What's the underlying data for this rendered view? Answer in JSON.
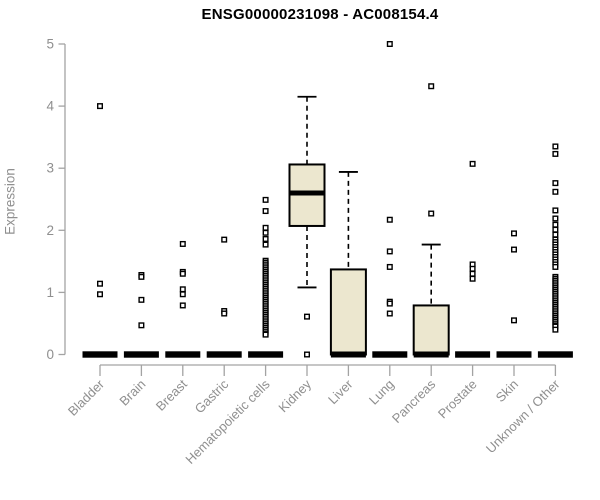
{
  "chart_data": {
    "type": "boxplot",
    "title": "ENSG00000231098 - AC008154.4",
    "ylabel": "Expression",
    "xlabel": "",
    "ylim": [
      0,
      5
    ],
    "yticks": [
      0,
      1,
      2,
      3,
      4,
      5
    ],
    "grid": false,
    "legend": false,
    "box_fill_color": "#ece7cf",
    "box_stroke_color": "#000000",
    "axis_color": "#a3a3a3",
    "tick_label_color": "#8f8f8f",
    "outlier_marker": "open-square",
    "categories": [
      "Bladder",
      "Brain",
      "Breast",
      "Gastric",
      "Hematopoietic cells",
      "Kidney",
      "Liver",
      "Lung",
      "Pancreas",
      "Prostate",
      "Skin",
      "Unknown / Other"
    ],
    "series": [
      {
        "name": "Bladder",
        "q1": 0,
        "median": 0,
        "q3": 0,
        "whisker_low": 0,
        "whisker_high": 0,
        "outliers": [
          4.0,
          1.14,
          0.97
        ]
      },
      {
        "name": "Brain",
        "q1": 0,
        "median": 0,
        "q3": 0,
        "whisker_low": 0,
        "whisker_high": 0,
        "outliers": [
          1.28,
          1.25,
          0.88,
          0.47
        ]
      },
      {
        "name": "Breast",
        "q1": 0,
        "median": 0,
        "q3": 0,
        "whisker_low": 0,
        "whisker_high": 0,
        "outliers": [
          1.78,
          1.33,
          1.3,
          1.05,
          0.97,
          0.79
        ]
      },
      {
        "name": "Gastric",
        "q1": 0,
        "median": 0,
        "q3": 0,
        "whisker_low": 0,
        "whisker_high": 0,
        "outliers": [
          1.85,
          0.7,
          0.66
        ]
      },
      {
        "name": "Hematopoietic cells",
        "q1": 0,
        "median": 0,
        "q3": 0,
        "whisker_low": 0,
        "whisker_high": 0,
        "outliers": [
          2.49,
          2.31,
          2.04,
          1.96,
          1.86,
          1.77,
          1.51,
          1.48,
          1.45,
          1.42,
          1.39,
          1.36,
          1.33,
          1.3,
          1.27,
          1.24,
          1.21,
          1.18,
          1.15,
          1.12,
          1.09,
          1.06,
          1.03,
          1.0,
          0.97,
          0.94,
          0.91,
          0.88,
          0.85,
          0.82,
          0.79,
          0.76,
          0.73,
          0.7,
          0.67,
          0.64,
          0.61,
          0.58,
          0.55,
          0.52,
          0.49,
          0.46,
          0.43,
          0.4,
          0.37,
          0.34,
          0.32
        ]
      },
      {
        "name": "Kidney",
        "q1": 2.07,
        "median": 2.6,
        "q3": 3.06,
        "whisker_low": 1.08,
        "whisker_high": 4.15,
        "outliers": [
          0.61,
          0.0
        ]
      },
      {
        "name": "Liver",
        "q1": 0,
        "median": 0,
        "q3": 1.37,
        "whisker_low": 0,
        "whisker_high": 2.94,
        "outliers": []
      },
      {
        "name": "Lung",
        "q1": 0,
        "median": 0,
        "q3": 0,
        "whisker_low": 0,
        "whisker_high": 0,
        "outliers": [
          5.0,
          2.17,
          1.66,
          1.41,
          0.85,
          0.82,
          0.66
        ]
      },
      {
        "name": "Pancreas",
        "q1": 0,
        "median": 0,
        "q3": 0.79,
        "whisker_low": 0,
        "whisker_high": 1.77,
        "outliers": [
          4.32,
          2.27
        ]
      },
      {
        "name": "Prostate",
        "q1": 0,
        "median": 0,
        "q3": 0,
        "whisker_low": 0,
        "whisker_high": 0,
        "outliers": [
          3.07,
          1.45,
          1.38,
          1.3,
          1.22
        ]
      },
      {
        "name": "Skin",
        "q1": 0,
        "median": 0,
        "q3": 0,
        "whisker_low": 0,
        "whisker_high": 0,
        "outliers": [
          1.95,
          1.69,
          0.55
        ]
      },
      {
        "name": "Unknown / Other",
        "q1": 0,
        "median": 0,
        "q3": 0,
        "whisker_low": 0,
        "whisker_high": 0,
        "outliers": [
          3.35,
          3.23,
          2.76,
          2.62,
          2.32,
          2.19,
          2.09,
          2.01,
          1.93,
          1.85,
          1.81,
          1.77,
          1.73,
          1.69,
          1.65,
          1.61,
          1.57,
          1.53,
          1.49,
          1.45,
          1.41,
          1.25,
          1.22,
          1.19,
          1.16,
          1.13,
          1.1,
          1.07,
          1.04,
          1.01,
          0.98,
          0.95,
          0.92,
          0.89,
          0.86,
          0.83,
          0.8,
          0.77,
          0.74,
          0.71,
          0.68,
          0.65,
          0.62,
          0.59,
          0.56,
          0.53,
          0.5,
          0.47,
          0.45,
          0.4
        ]
      }
    ]
  }
}
